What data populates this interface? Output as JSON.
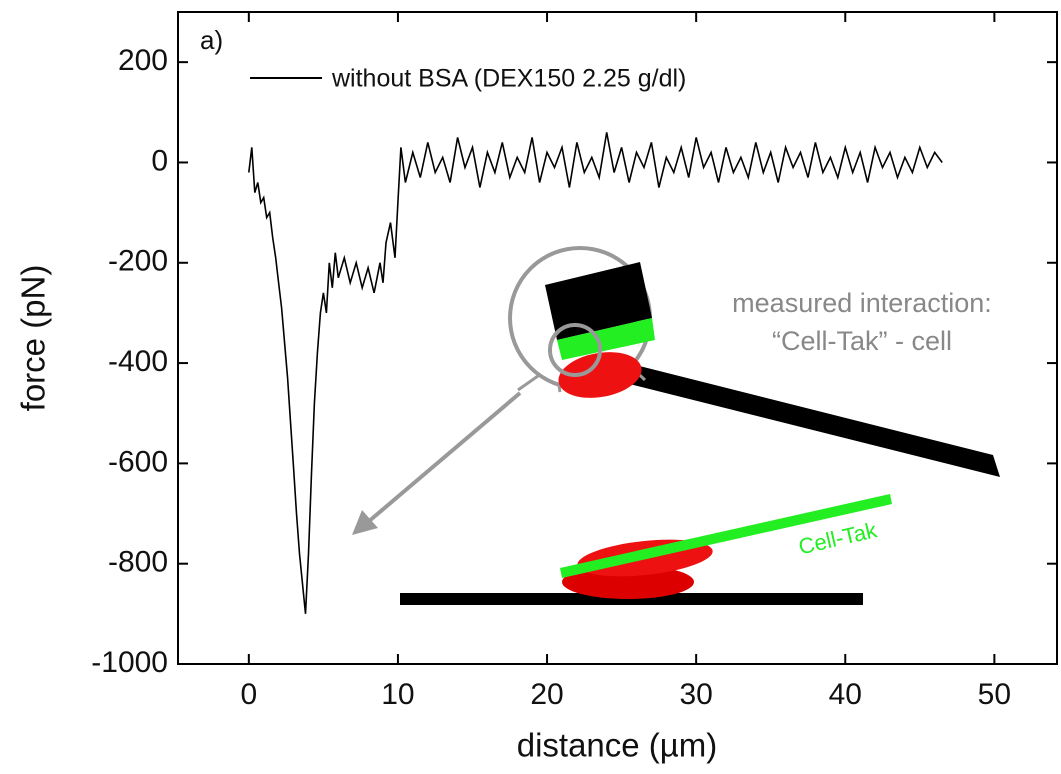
{
  "chart_data": {
    "type": "line",
    "panel_label": "a)",
    "xlabel": "distance (µm)",
    "ylabel": "force (pN)",
    "xlim": [
      -4.75,
      54.2
    ],
    "ylim": [
      -1000,
      300
    ],
    "xticks": [
      0,
      10,
      20,
      30,
      40,
      50
    ],
    "yticks": [
      200,
      0,
      -200,
      -400,
      -600,
      -800,
      -1000
    ],
    "annotations": [
      "measured interaction:",
      "“Cell-Tak” - cell",
      "Cell-Tak"
    ],
    "series": [
      {
        "name": "without BSA (DEX150 2.25 g/dl)",
        "color": "#000000",
        "x": [
          0,
          0.2,
          0.4,
          0.6,
          0.8,
          1.0,
          1.2,
          1.4,
          1.6,
          1.8,
          2.0,
          2.2,
          2.4,
          2.6,
          2.8,
          3.0,
          3.2,
          3.4,
          3.6,
          3.8,
          4.0,
          4.2,
          4.4,
          4.6,
          4.8,
          5.0,
          5.2,
          5.4,
          5.6,
          5.8,
          6.0,
          6.4,
          6.8,
          7.2,
          7.6,
          8.0,
          8.4,
          8.8,
          9.0,
          9.2,
          9.5,
          9.8,
          10,
          10.2,
          10.5,
          11,
          11.5,
          12,
          12.5,
          13,
          13.5,
          14,
          14.5,
          15,
          15.5,
          16,
          16.5,
          17,
          17.5,
          18,
          18.5,
          19,
          19.5,
          20,
          20.5,
          21,
          21.5,
          22,
          22.5,
          23,
          23.5,
          24,
          24.5,
          25,
          25.5,
          26,
          26.5,
          27,
          27.5,
          28,
          28.5,
          29,
          29.5,
          30,
          30.5,
          31,
          31.5,
          32,
          32.5,
          33,
          33.5,
          34,
          34.5,
          35,
          35.5,
          36,
          36.5,
          37,
          37.5,
          38,
          38.5,
          39,
          39.5,
          40,
          40.5,
          41,
          41.5,
          42,
          42.5,
          43,
          43.5,
          44,
          44.5,
          45,
          45.5,
          46,
          46.5
        ],
        "values": [
          -20,
          30,
          -60,
          -40,
          -80,
          -70,
          -110,
          -100,
          -150,
          -190,
          -240,
          -290,
          -360,
          -430,
          -520,
          -610,
          -700,
          -780,
          -840,
          -900,
          -780,
          -620,
          -480,
          -380,
          -300,
          -260,
          -300,
          -200,
          -250,
          -180,
          -230,
          -190,
          -240,
          -200,
          -250,
          -210,
          -260,
          -200,
          -240,
          -160,
          -120,
          -190,
          -80,
          30,
          -40,
          20,
          -30,
          40,
          -20,
          10,
          -40,
          50,
          -10,
          30,
          -50,
          20,
          -20,
          40,
          -30,
          10,
          -20,
          50,
          -40,
          20,
          -10,
          30,
          -50,
          40,
          -20,
          10,
          -30,
          60,
          -20,
          30,
          -40,
          20,
          -10,
          40,
          -50,
          10,
          -20,
          30,
          -30,
          50,
          -10,
          20,
          -40,
          30,
          -20,
          10,
          -30,
          40,
          -20,
          20,
          -40,
          30,
          -10,
          20,
          -30,
          40,
          -20,
          10,
          -30,
          30,
          -20,
          20,
          -40,
          30,
          -10,
          20,
          -30,
          10,
          -20,
          30,
          -10,
          20,
          0
        ]
      }
    ]
  }
}
